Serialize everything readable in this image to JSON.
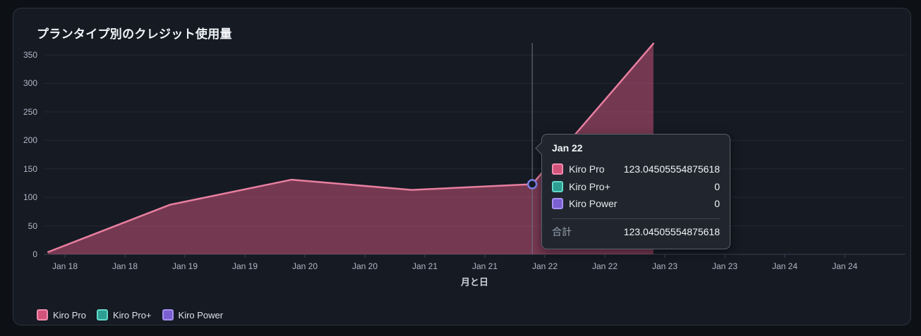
{
  "chart_data": {
    "type": "area",
    "title": "プランタイプ別のクレジット使用量",
    "xlabel": "月と日",
    "ylabel": "",
    "ylim": [
      0,
      350
    ],
    "ytick_step": 50,
    "grid": "horizontal",
    "legend_position": "bottom-left",
    "x_tick_labels": [
      "Jan 18",
      "Jan 18",
      "Jan 19",
      "Jan 19",
      "Jan 20",
      "Jan 20",
      "Jan 21",
      "Jan 21",
      "Jan 22",
      "Jan 22",
      "Jan 23",
      "Jan 23",
      "Jan 24",
      "Jan 24"
    ],
    "series": [
      {
        "name": "Kiro Pro",
        "color_key": "kiro_pro",
        "points": [
          {
            "t": -0.28,
            "v": 4
          },
          {
            "t": 1.75,
            "v": 87
          },
          {
            "t": 3.78,
            "v": 131
          },
          {
            "t": 5.78,
            "v": 113
          },
          {
            "t": 7.79,
            "v": 123.04505554875618
          },
          {
            "t": 9.81,
            "v": 370
          }
        ]
      },
      {
        "name": "Kiro Pro+",
        "color_key": "kiro_pro_plus",
        "points": []
      },
      {
        "name": "Kiro Power",
        "color_key": "kiro_power",
        "points": []
      }
    ],
    "hover": {
      "t": 7.79,
      "v": 123.04505554875618
    }
  },
  "tooltip": {
    "date": "Jan 22",
    "rows": [
      {
        "label": "Kiro Pro",
        "value": "123.04505554875618",
        "color_key": "kiro_pro"
      },
      {
        "label": "Kiro Pro+",
        "value": "0",
        "color_key": "kiro_pro_plus"
      },
      {
        "label": "Kiro Power",
        "value": "0",
        "color_key": "kiro_power"
      }
    ],
    "total_label": "合計",
    "total_value": "123.04505554875618"
  },
  "colors": {
    "kiro_pro": {
      "line": "#e87f9f",
      "fill": "rgba(214,85,127,0.5)",
      "swatch": "#d15379",
      "swatch_border": "#f08cb1"
    },
    "kiro_pro_plus": {
      "line": "#2e9d92",
      "fill": "rgba(46,157,146,0.5)",
      "swatch": "#2e9d92",
      "swatch_border": "#62d9c9"
    },
    "kiro_power": {
      "line": "#7a5fd1",
      "fill": "rgba(122,95,209,0.5)",
      "swatch": "#7a5fd1",
      "swatch_border": "#a78ff0"
    },
    "hover_marker_ring": "#7c82e8",
    "card_background": "#151a23",
    "text_primary": "#f2f4f8"
  }
}
